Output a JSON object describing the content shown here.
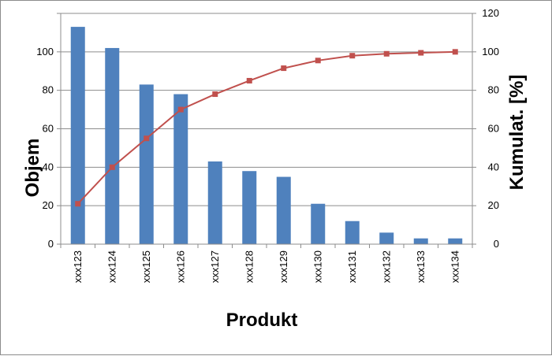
{
  "chart_data": {
    "type": "bar",
    "title": "",
    "xlabel": "Produkt",
    "ylabel": "Objem",
    "y2label": "Kumulat. [%]",
    "categories": [
      "xxx123",
      "xxx124",
      "xxx125",
      "xxx126",
      "xxx127",
      "xxx128",
      "xxx129",
      "xxx130",
      "xxx131",
      "xxx132",
      "xxx133",
      "xxx134"
    ],
    "series": [
      {
        "name": "",
        "type": "bar",
        "axis": "left",
        "color": "#4f81bd",
        "values": [
          113,
          102,
          83,
          78,
          43,
          38,
          35,
          21,
          12,
          6,
          3,
          3
        ]
      },
      {
        "name": "",
        "type": "line",
        "axis": "right",
        "color": "#c0504d",
        "marker": "square",
        "values": [
          21,
          40,
          55,
          70,
          78,
          85,
          91.5,
          95.5,
          98,
          99,
          99.5,
          100
        ]
      }
    ],
    "ylim": [
      0,
      120
    ],
    "yticks": [
      "0",
      "20",
      "40",
      "60",
      "80",
      "100"
    ],
    "y2lim": [
      0,
      120
    ],
    "y2ticks": [
      "0",
      "20",
      "40",
      "60",
      "80",
      "100",
      "120"
    ],
    "grid": true,
    "legend": "none"
  }
}
